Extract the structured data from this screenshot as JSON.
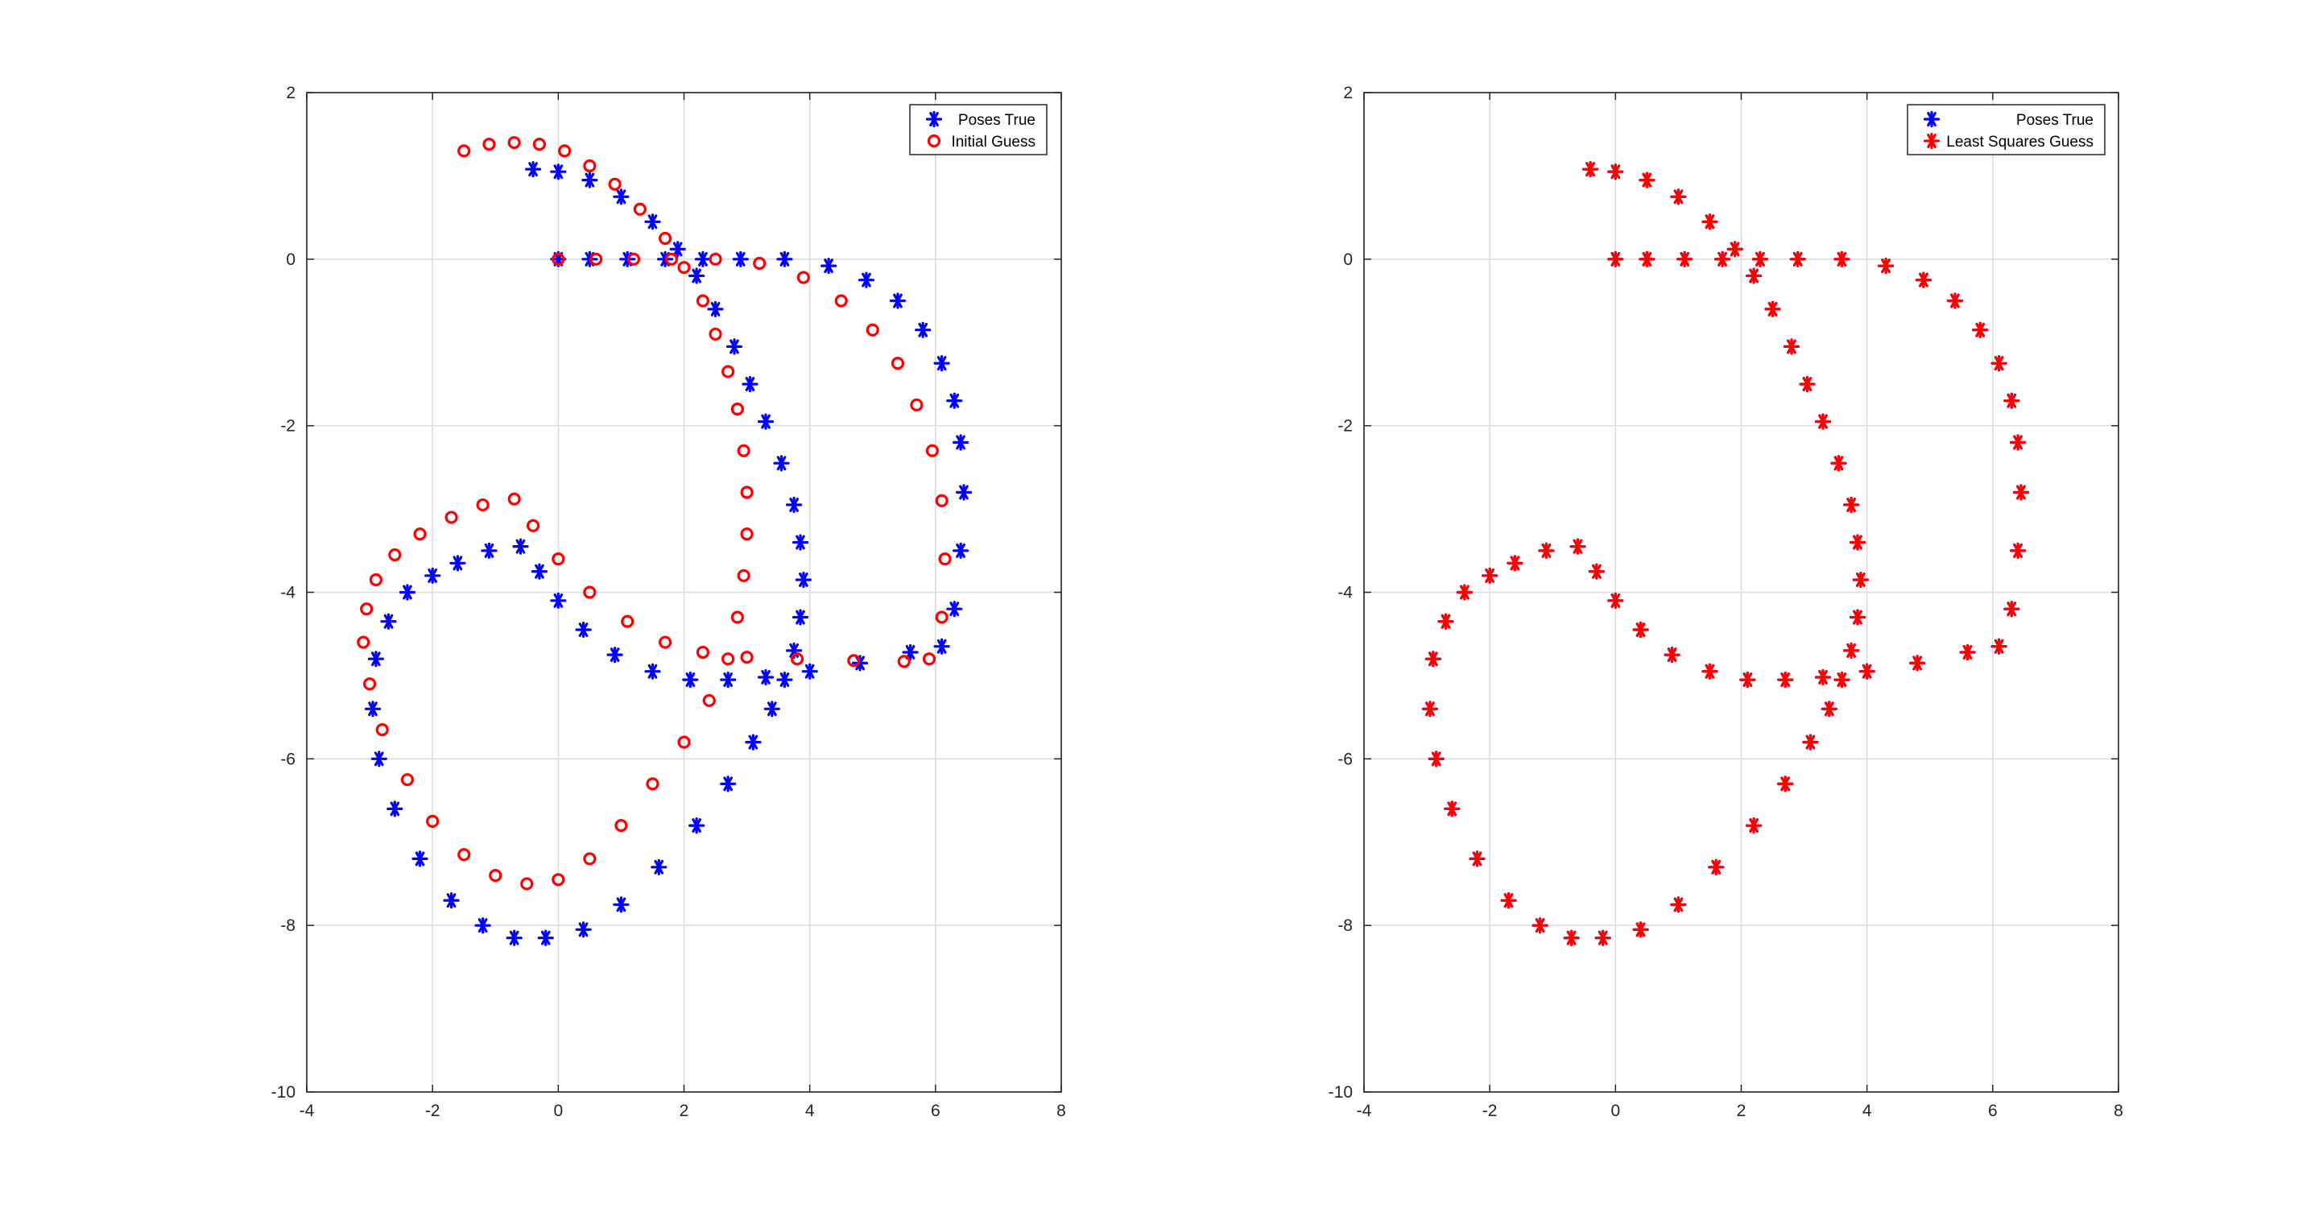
{
  "chart_data": [
    {
      "type": "scatter",
      "title": "",
      "xlabel": "",
      "ylabel": "",
      "xlim": [
        -4,
        8
      ],
      "ylim": [
        -10,
        2
      ],
      "xticks": [
        "-4",
        "-2",
        "0",
        "2",
        "4",
        "6",
        "8"
      ],
      "yticks": [
        "2",
        "0",
        "-2",
        "-4",
        "-6",
        "-8",
        "-10"
      ],
      "grid": true,
      "legend_location": "top-right",
      "series": [
        {
          "name": "Poses True",
          "marker": "asterisk",
          "color": "#0000ff",
          "x": [
            -0.4,
            0.0,
            0.5,
            1.0,
            1.5,
            1.9,
            2.2,
            2.5,
            2.8,
            3.05,
            3.3,
            3.55,
            3.75,
            3.85,
            3.9,
            3.85,
            3.75,
            3.6,
            3.4,
            3.1,
            2.7,
            2.2,
            1.6,
            1.0,
            0.4,
            -0.2,
            -0.7,
            -1.2,
            -1.7,
            -2.2,
            -2.6,
            -2.85,
            -2.95,
            -2.9,
            -2.7,
            -2.4,
            -2.0,
            -1.6,
            -1.1,
            -0.6,
            -0.3,
            0.0,
            0.4,
            0.9,
            1.5,
            2.1,
            2.7,
            3.3,
            4.0,
            4.8,
            5.6,
            6.1,
            6.3,
            6.4,
            6.45,
            6.4,
            6.3,
            6.1,
            5.8,
            5.4,
            4.9,
            4.3,
            3.6,
            2.9,
            2.3,
            1.7,
            1.1,
            0.5,
            0.0
          ],
          "y": [
            1.08,
            1.05,
            0.95,
            0.75,
            0.45,
            0.12,
            -0.2,
            -0.6,
            -1.05,
            -1.5,
            -1.95,
            -2.45,
            -2.95,
            -3.4,
            -3.85,
            -4.3,
            -4.7,
            -5.05,
            -5.4,
            -5.8,
            -6.3,
            -6.8,
            -7.3,
            -7.75,
            -8.05,
            -8.15,
            -8.15,
            -8.0,
            -7.7,
            -7.2,
            -6.6,
            -6.0,
            -5.4,
            -4.8,
            -4.35,
            -4.0,
            -3.8,
            -3.65,
            -3.5,
            -3.45,
            -3.75,
            -4.1,
            -4.45,
            -4.75,
            -4.95,
            -5.05,
            -5.05,
            -5.02,
            -4.95,
            -4.85,
            -4.72,
            -4.65,
            -4.2,
            -3.5,
            -2.8,
            -2.2,
            -1.7,
            -1.25,
            -0.85,
            -0.5,
            -0.25,
            -0.08,
            0.0,
            0.0,
            0.0,
            0.0,
            0.0,
            0.0,
            0.0
          ]
        },
        {
          "name": "Initial Guess",
          "marker": "circle",
          "color": "#ff0000",
          "x": [
            -1.5,
            -1.1,
            -0.7,
            -0.3,
            0.1,
            0.5,
            0.9,
            1.3,
            1.7,
            2.0,
            2.3,
            2.5,
            2.7,
            2.85,
            2.95,
            3.0,
            3.0,
            2.95,
            2.85,
            2.7,
            2.4,
            2.0,
            1.5,
            1.0,
            0.5,
            0.0,
            -0.5,
            -1.0,
            -1.5,
            -2.0,
            -2.4,
            -2.8,
            -3.0,
            -3.1,
            -3.05,
            -2.9,
            -2.6,
            -2.2,
            -1.7,
            -1.2,
            -0.7,
            -0.4,
            0.0,
            0.5,
            1.1,
            1.7,
            2.3,
            3.0,
            3.8,
            4.7,
            5.5,
            5.9,
            6.1,
            6.15,
            6.1,
            5.95,
            5.7,
            5.4,
            5.0,
            4.5,
            3.9,
            3.2,
            2.5,
            1.8,
            1.2,
            0.6,
            0.0
          ],
          "y": [
            1.3,
            1.38,
            1.4,
            1.38,
            1.3,
            1.12,
            0.9,
            0.6,
            0.25,
            -0.1,
            -0.5,
            -0.9,
            -1.35,
            -1.8,
            -2.3,
            -2.8,
            -3.3,
            -3.8,
            -4.3,
            -4.8,
            -5.3,
            -5.8,
            -6.3,
            -6.8,
            -7.2,
            -7.45,
            -7.5,
            -7.4,
            -7.15,
            -6.75,
            -6.25,
            -5.65,
            -5.1,
            -4.6,
            -4.2,
            -3.85,
            -3.55,
            -3.3,
            -3.1,
            -2.95,
            -2.88,
            -3.2,
            -3.6,
            -4.0,
            -4.35,
            -4.6,
            -4.72,
            -4.78,
            -4.8,
            -4.82,
            -4.83,
            -4.8,
            -4.3,
            -3.6,
            -2.9,
            -2.3,
            -1.75,
            -1.25,
            -0.85,
            -0.5,
            -0.22,
            -0.05,
            0.0,
            0.0,
            0.0,
            0.0,
            0.0
          ]
        }
      ]
    },
    {
      "type": "scatter",
      "title": "",
      "xlabel": "",
      "ylabel": "",
      "xlim": [
        -4,
        8
      ],
      "ylim": [
        -10,
        2
      ],
      "xticks": [
        "-4",
        "-2",
        "0",
        "2",
        "4",
        "6",
        "8"
      ],
      "yticks": [
        "2",
        "0",
        "-2",
        "-4",
        "-6",
        "-8",
        "-10"
      ],
      "grid": true,
      "legend_location": "top-right",
      "series": [
        {
          "name": "Poses True",
          "marker": "asterisk",
          "color": "#0000ff",
          "x": [
            -0.4,
            0.0,
            0.5,
            1.0,
            1.5,
            1.9,
            2.2,
            2.5,
            2.8,
            3.05,
            3.3,
            3.55,
            3.75,
            3.85,
            3.9,
            3.85,
            3.75,
            3.6,
            3.4,
            3.1,
            2.7,
            2.2,
            1.6,
            1.0,
            0.4,
            -0.2,
            -0.7,
            -1.2,
            -1.7,
            -2.2,
            -2.6,
            -2.85,
            -2.95,
            -2.9,
            -2.7,
            -2.4,
            -2.0,
            -1.6,
            -1.1,
            -0.6,
            -0.3,
            0.0,
            0.4,
            0.9,
            1.5,
            2.1,
            2.7,
            3.3,
            4.0,
            4.8,
            5.6,
            6.1,
            6.3,
            6.4,
            6.45,
            6.4,
            6.3,
            6.1,
            5.8,
            5.4,
            4.9,
            4.3,
            3.6,
            2.9,
            2.3,
            1.7,
            1.1,
            0.5,
            0.0
          ],
          "y": [
            1.08,
            1.05,
            0.95,
            0.75,
            0.45,
            0.12,
            -0.2,
            -0.6,
            -1.05,
            -1.5,
            -1.95,
            -2.45,
            -2.95,
            -3.4,
            -3.85,
            -4.3,
            -4.7,
            -5.05,
            -5.4,
            -5.8,
            -6.3,
            -6.8,
            -7.3,
            -7.75,
            -8.05,
            -8.15,
            -8.15,
            -8.0,
            -7.7,
            -7.2,
            -6.6,
            -6.0,
            -5.4,
            -4.8,
            -4.35,
            -4.0,
            -3.8,
            -3.65,
            -3.5,
            -3.45,
            -3.75,
            -4.1,
            -4.45,
            -4.75,
            -4.95,
            -5.05,
            -5.05,
            -5.02,
            -4.95,
            -4.85,
            -4.72,
            -4.65,
            -4.2,
            -3.5,
            -2.8,
            -2.2,
            -1.7,
            -1.25,
            -0.85,
            -0.5,
            -0.25,
            -0.08,
            0.0,
            0.0,
            0.0,
            0.0,
            0.0,
            0.0,
            0.0
          ]
        },
        {
          "name": "Least Squares Guess",
          "marker": "asterisk",
          "color": "#ff0000",
          "x": [
            -0.4,
            0.0,
            0.5,
            1.0,
            1.5,
            1.9,
            2.2,
            2.5,
            2.8,
            3.05,
            3.3,
            3.55,
            3.75,
            3.85,
            3.9,
            3.85,
            3.75,
            3.6,
            3.4,
            3.1,
            2.7,
            2.2,
            1.6,
            1.0,
            0.4,
            -0.2,
            -0.7,
            -1.2,
            -1.7,
            -2.2,
            -2.6,
            -2.85,
            -2.95,
            -2.9,
            -2.7,
            -2.4,
            -2.0,
            -1.6,
            -1.1,
            -0.6,
            -0.3,
            0.0,
            0.4,
            0.9,
            1.5,
            2.1,
            2.7,
            3.3,
            4.0,
            4.8,
            5.6,
            6.1,
            6.3,
            6.4,
            6.45,
            6.4,
            6.3,
            6.1,
            5.8,
            5.4,
            4.9,
            4.3,
            3.6,
            2.9,
            2.3,
            1.7,
            1.1,
            0.5,
            0.0
          ],
          "y": [
            1.08,
            1.05,
            0.95,
            0.75,
            0.45,
            0.12,
            -0.2,
            -0.6,
            -1.05,
            -1.5,
            -1.95,
            -2.45,
            -2.95,
            -3.4,
            -3.85,
            -4.3,
            -4.7,
            -5.05,
            -5.4,
            -5.8,
            -6.3,
            -6.8,
            -7.3,
            -7.75,
            -8.05,
            -8.15,
            -8.15,
            -8.0,
            -7.7,
            -7.2,
            -6.6,
            -6.0,
            -5.4,
            -4.8,
            -4.35,
            -4.0,
            -3.8,
            -3.65,
            -3.5,
            -3.45,
            -3.75,
            -4.1,
            -4.45,
            -4.75,
            -4.95,
            -5.05,
            -5.05,
            -5.02,
            -4.95,
            -4.85,
            -4.72,
            -4.65,
            -4.2,
            -3.5,
            -2.8,
            -2.2,
            -1.7,
            -1.25,
            -0.85,
            -0.5,
            -0.25,
            -0.08,
            0.0,
            0.0,
            0.0,
            0.0,
            0.0,
            0.0,
            0.0
          ]
        }
      ]
    }
  ]
}
